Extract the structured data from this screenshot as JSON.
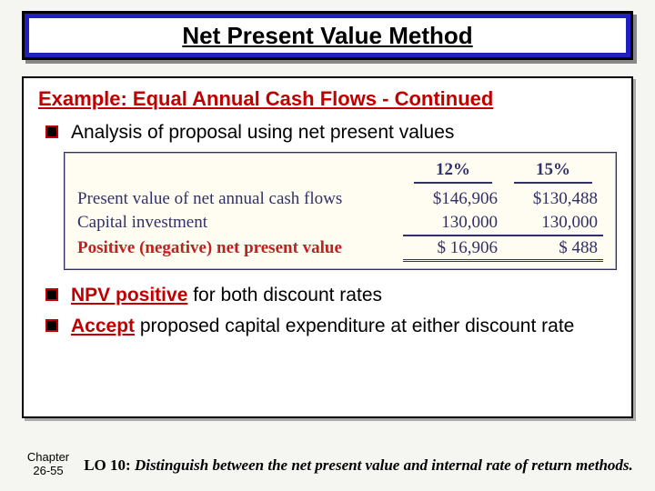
{
  "title": "Net Present Value Method",
  "subtitle": "Example: Equal Annual Cash Flows - Continued",
  "bullets": {
    "b1": "Analysis of proposal using net present values",
    "b2_hl": "NPV positive",
    "b2_rest": " for both discount rates",
    "b3_hl": "Accept",
    "b3_rest": " proposed capital expenditure at either discount rate"
  },
  "table": {
    "col1_header": "12%",
    "col2_header": "15%",
    "rows": {
      "r1": {
        "label": "Present value of net annual cash flows",
        "c1": "$146,906",
        "c2": "$130,488"
      },
      "r2": {
        "label": "Capital investment",
        "c1": "130,000",
        "c2": "130,000"
      },
      "r3": {
        "label": "Positive (negative) net present value",
        "c1": "$  16,906",
        "c2": "$       488"
      }
    }
  },
  "footer": {
    "chapter_l1": "Chapter",
    "chapter_l2": "26-55",
    "lo_label": "LO 10:",
    "lo_text": "Distinguish between the net present value and internal rate of return methods."
  },
  "colors": {
    "banner_bg": "#2020c0",
    "accent_red": "#c00000",
    "table_text": "#30306a",
    "table_bg": "#fffdf2"
  }
}
